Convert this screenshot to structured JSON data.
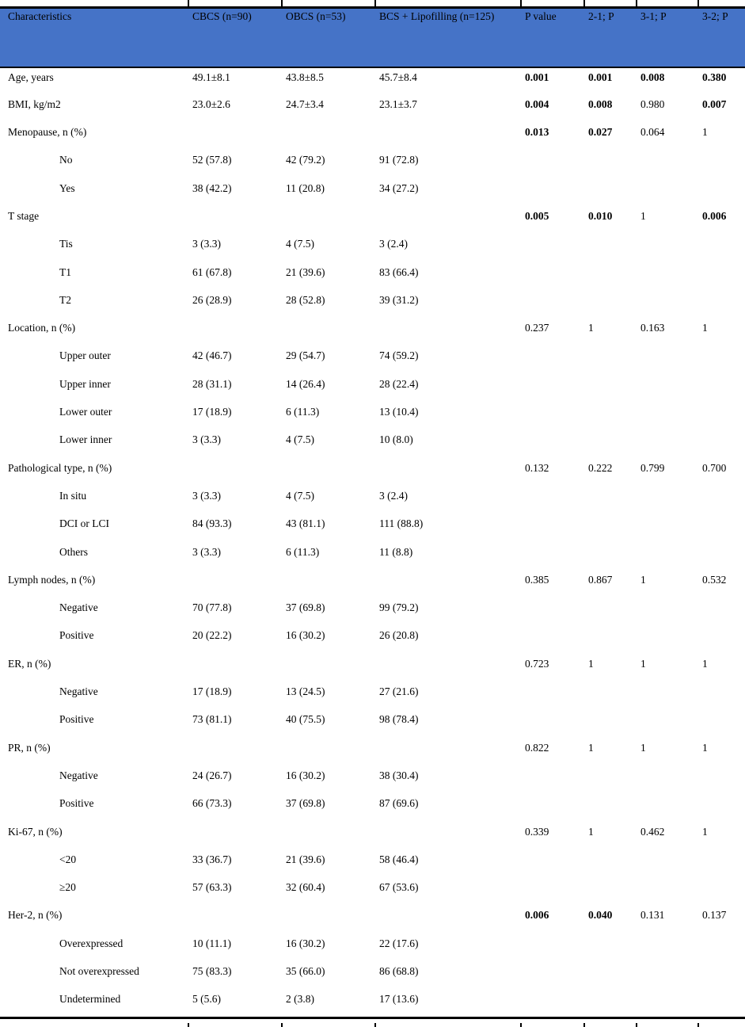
{
  "table": {
    "title": "Patient characteristics comparison table",
    "header_bg": "#4573C7",
    "text_color": "#000000",
    "columns": [
      "Characteristics",
      "CBCS (n=90)",
      "OBCS (n=53)",
      "BCS + Lipofilling (n=125)",
      "P value",
      "2-1; P",
      "3-1; P",
      "3-2; P"
    ],
    "rows": [
      {
        "indent": false,
        "cells": [
          "Age, years",
          "49.1±8.1",
          "43.8±8.5",
          "45.7±8.4",
          "0.001",
          "0.001",
          "0.008",
          "0.380"
        ],
        "bold": [
          4,
          5,
          6,
          7
        ]
      },
      {
        "indent": false,
        "cells": [
          "BMI, kg/m2",
          "23.0±2.6",
          "24.7±3.4",
          "23.1±3.7",
          "0.004",
          "0.008",
          "0.980",
          "0.007"
        ],
        "bold": [
          4,
          5,
          7
        ]
      },
      {
        "indent": false,
        "cells": [
          "Menopause, n (%)",
          "",
          "",
          "",
          "0.013",
          "0.027",
          "0.064",
          "1"
        ],
        "bold": [
          4,
          5
        ]
      },
      {
        "indent": true,
        "cells": [
          "No",
          "52 (57.8)",
          "42 (79.2)",
          "91 (72.8)",
          "",
          "",
          "",
          ""
        ]
      },
      {
        "indent": true,
        "cells": [
          "Yes",
          "38 (42.2)",
          "11 (20.8)",
          "34 (27.2)",
          "",
          "",
          "",
          ""
        ]
      },
      {
        "indent": false,
        "cells": [
          "T stage",
          "",
          "",
          "",
          "0.005",
          "0.010",
          "1",
          "0.006"
        ],
        "bold": [
          4,
          5,
          7
        ]
      },
      {
        "indent": true,
        "cells": [
          "Tis",
          "3 (3.3)",
          "4 (7.5)",
          "3 (2.4)",
          "",
          "",
          "",
          ""
        ]
      },
      {
        "indent": true,
        "cells": [
          "T1",
          "61 (67.8)",
          "21 (39.6)",
          "83 (66.4)",
          "",
          "",
          "",
          ""
        ]
      },
      {
        "indent": true,
        "cells": [
          "T2",
          "26 (28.9)",
          "28 (52.8)",
          "39 (31.2)",
          "",
          "",
          "",
          ""
        ]
      },
      {
        "indent": false,
        "cells": [
          "Location, n (%)",
          "",
          "",
          "",
          "0.237",
          "1",
          "0.163",
          "1"
        ]
      },
      {
        "indent": true,
        "cells": [
          "Upper outer",
          "42 (46.7)",
          "29 (54.7)",
          "74 (59.2)",
          "",
          "",
          "",
          ""
        ]
      },
      {
        "indent": true,
        "cells": [
          "Upper inner",
          "28 (31.1)",
          "14 (26.4)",
          "28 (22.4)",
          "",
          "",
          "",
          ""
        ]
      },
      {
        "indent": true,
        "cells": [
          "Lower outer",
          "17 (18.9)",
          "6 (11.3)",
          "13 (10.4)",
          "",
          "",
          "",
          ""
        ]
      },
      {
        "indent": true,
        "cells": [
          "Lower inner",
          "3 (3.3)",
          "4 (7.5)",
          "10 (8.0)",
          "",
          "",
          "",
          ""
        ]
      },
      {
        "indent": false,
        "cells": [
          "Pathological type, n (%)",
          "",
          "",
          "",
          "0.132",
          "0.222",
          "0.799",
          "0.700"
        ]
      },
      {
        "indent": true,
        "cells": [
          "In situ",
          "3 (3.3)",
          "4 (7.5)",
          "3 (2.4)",
          "",
          "",
          "",
          ""
        ]
      },
      {
        "indent": true,
        "cells": [
          "DCI or LCI",
          "84 (93.3)",
          "43 (81.1)",
          "111 (88.8)",
          "",
          "",
          "",
          ""
        ]
      },
      {
        "indent": true,
        "cells": [
          "Others",
          "3 (3.3)",
          "6 (11.3)",
          "11 (8.8)",
          "",
          "",
          "",
          ""
        ]
      },
      {
        "indent": false,
        "cells": [
          "Lymph nodes, n (%)",
          "",
          "",
          "",
          "0.385",
          "0.867",
          "1",
          "0.532"
        ]
      },
      {
        "indent": true,
        "cells": [
          "Negative",
          "70 (77.8)",
          "37 (69.8)",
          "99 (79.2)",
          "",
          "",
          "",
          ""
        ]
      },
      {
        "indent": true,
        "cells": [
          "Positive",
          "20 (22.2)",
          "16 (30.2)",
          "26 (20.8)",
          "",
          "",
          "",
          ""
        ]
      },
      {
        "indent": false,
        "cells": [
          "ER, n (%)",
          "",
          "",
          "",
          "0.723",
          "1",
          "1",
          "1"
        ]
      },
      {
        "indent": true,
        "cells": [
          "Negative",
          "17 (18.9)",
          "13 (24.5)",
          "27 (21.6)",
          "",
          "",
          "",
          ""
        ]
      },
      {
        "indent": true,
        "cells": [
          "Positive",
          "73 (81.1)",
          "40 (75.5)",
          "98 (78.4)",
          "",
          "",
          "",
          ""
        ]
      },
      {
        "indent": false,
        "cells": [
          "PR, n (%)",
          "",
          "",
          "",
          "0.822",
          "1",
          "1",
          "1"
        ]
      },
      {
        "indent": true,
        "cells": [
          "Negative",
          "24 (26.7)",
          "16 (30.2)",
          "38 (30.4)",
          "",
          "",
          "",
          ""
        ]
      },
      {
        "indent": true,
        "cells": [
          "Positive",
          "66 (73.3)",
          "37 (69.8)",
          "87 (69.6)",
          "",
          "",
          "",
          ""
        ]
      },
      {
        "indent": false,
        "cells": [
          "Ki-67, n (%)",
          "",
          "",
          "",
          "0.339",
          "1",
          "0.462",
          "1"
        ]
      },
      {
        "indent": true,
        "cells": [
          "<20",
          "33 (36.7)",
          "21 (39.6)",
          "58 (46.4)",
          "",
          "",
          "",
          ""
        ]
      },
      {
        "indent": true,
        "cells": [
          "≥20",
          "57 (63.3)",
          "32 (60.4)",
          "67 (53.6)",
          "",
          "",
          "",
          ""
        ]
      },
      {
        "indent": false,
        "cells": [
          "Her-2, n (%)",
          "",
          "",
          "",
          "0.006",
          "0.040",
          "0.131",
          "0.137"
        ],
        "bold": [
          4,
          5
        ]
      },
      {
        "indent": true,
        "cells": [
          "Overexpressed",
          "10 (11.1)",
          "16 (30.2)",
          "22 (17.6)",
          "",
          "",
          "",
          ""
        ]
      },
      {
        "indent": true,
        "cells": [
          "Not overexpressed",
          "75 (83.3)",
          "35 (66.0)",
          "86 (68.8)",
          "",
          "",
          "",
          ""
        ]
      },
      {
        "indent": true,
        "cells": [
          "Undetermined",
          "5 (5.6)",
          "2 (3.8)",
          "17 (13.6)",
          "",
          "",
          "",
          ""
        ]
      }
    ]
  }
}
